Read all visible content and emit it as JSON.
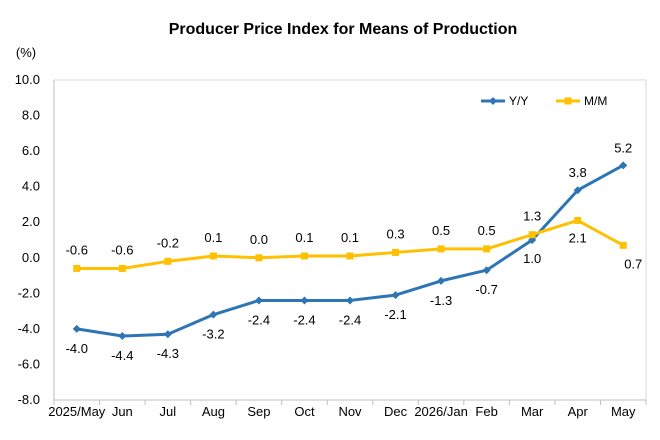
{
  "chart_data": {
    "type": "line",
    "title": "Producer Price Index for Means of Production",
    "unit_label": "(%)",
    "categories": [
      "2025/May",
      "Jun",
      "Jul",
      "Aug",
      "Sep",
      "Oct",
      "Nov",
      "Dec",
      "2026/Jan",
      "Feb",
      "Mar",
      "Apr",
      "May"
    ],
    "ylim": [
      -8.0,
      10.0
    ],
    "yticks": [
      "10.0",
      "8.0",
      "6.0",
      "4.0",
      "2.0",
      "0.0",
      "-2.0",
      "-4.0",
      "-6.0",
      "-8.0"
    ],
    "grid": false,
    "legend_position": "top-right",
    "series": [
      {
        "name": "Y/Y",
        "color": "#2E75B6",
        "marker": "diamond",
        "values": [
          -4.0,
          -4.4,
          -4.3,
          -3.2,
          -2.4,
          -2.4,
          -2.4,
          -2.1,
          -1.3,
          -0.7,
          1.0,
          3.8,
          5.2
        ],
        "labels": [
          "-4.0",
          "-4.4",
          "-4.3",
          "-3.2",
          "-2.4",
          "-2.4",
          "-2.4",
          "-2.1",
          "-1.3",
          "-0.7",
          "1.0",
          "3.8",
          "5.2"
        ]
      },
      {
        "name": "M/M",
        "color": "#FFC000",
        "marker": "square",
        "values": [
          -0.6,
          -0.6,
          -0.2,
          0.1,
          0.0,
          0.1,
          0.1,
          0.3,
          0.5,
          0.5,
          1.3,
          2.1,
          0.7
        ],
        "labels": [
          "-0.6",
          "-0.6",
          "-0.2",
          "0.1",
          "0.0",
          "0.1",
          "0.1",
          "0.3",
          "0.5",
          "0.5",
          "1.3",
          "2.1",
          "0.7"
        ]
      }
    ]
  }
}
